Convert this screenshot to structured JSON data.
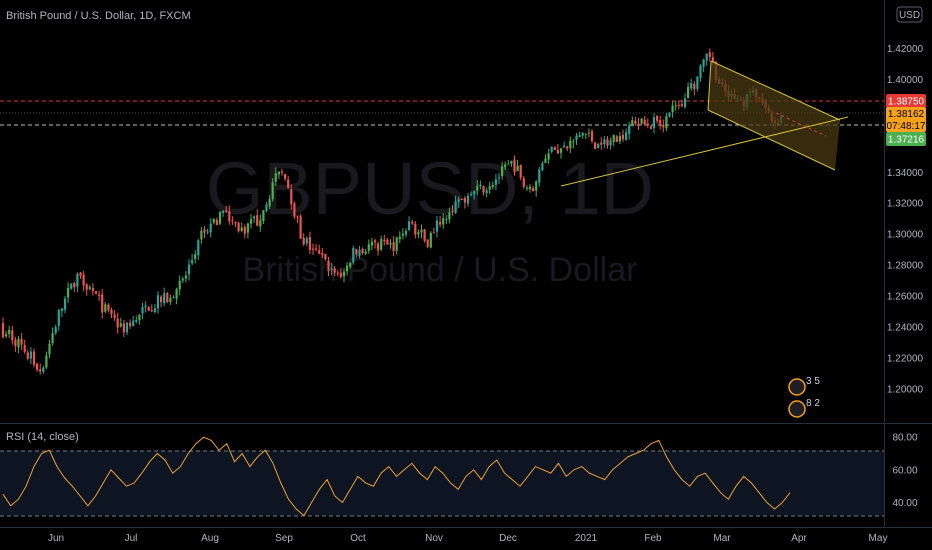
{
  "header": {
    "symbol_title": "British Pound / U.S. Dollar, 1D, FXCM",
    "currency_button": "USD",
    "rsi_title": "RSI (14, close)"
  },
  "watermark": {
    "ticker": "GBPUSD, 1D",
    "name": "British Pound / U.S. Dollar"
  },
  "colors": {
    "background": "#000000",
    "up": "#26a69a",
    "up_bright": "#4caf50",
    "down": "#ef5350",
    "channel_line": "#d4c13a",
    "channel_fill": "#4a3a12",
    "rsi_line": "#f0a030",
    "rsi_band": "#0d1522",
    "resistance": "#e53935",
    "support_dash": "#bfbfbf",
    "label_red": "#e53935",
    "label_orange": "#f7a21b",
    "label_green": "#4caf50"
  },
  "price_labels": {
    "resistance": "1.38750",
    "last_price": "1.38162",
    "countdown": "07:48:17",
    "support": "1.37216"
  },
  "event_badges": [
    {
      "label": "3 5"
    },
    {
      "label": "8 2"
    }
  ],
  "chart_data": [
    {
      "type": "candlestick",
      "title": "British Pound / U.S. Dollar, 1D, FXCM",
      "x_ticks": [
        "Jun",
        "Jul",
        "Aug",
        "Sep",
        "Oct",
        "Nov",
        "Dec",
        "2021",
        "Feb",
        "Mar",
        "Apr",
        "May"
      ],
      "y_ticks": [
        "1.20000",
        "1.22000",
        "1.24000",
        "1.26000",
        "1.28000",
        "1.30000",
        "1.32000",
        "1.34000",
        "1.36000",
        "1.38000",
        "1.40000",
        "1.42000"
      ],
      "ylim": [
        1.185,
        1.432
      ],
      "path": [
        [
          "2020-05-12",
          1.238
        ],
        [
          "2020-05-19",
          1.226
        ],
        [
          "2020-05-26",
          1.212
        ],
        [
          "2020-06-02",
          1.248
        ],
        [
          "2020-06-10",
          1.276
        ],
        [
          "2020-06-16",
          1.262
        ],
        [
          "2020-06-23",
          1.245
        ],
        [
          "2020-06-30",
          1.238
        ],
        [
          "2020-07-08",
          1.254
        ],
        [
          "2020-07-15",
          1.258
        ],
        [
          "2020-07-22",
          1.271
        ],
        [
          "2020-07-29",
          1.3
        ],
        [
          "2020-08-06",
          1.314
        ],
        [
          "2020-08-14",
          1.303
        ],
        [
          "2020-08-21",
          1.309
        ],
        [
          "2020-08-28",
          1.334
        ],
        [
          "2020-09-01",
          1.342
        ],
        [
          "2020-09-08",
          1.298
        ],
        [
          "2020-09-15",
          1.286
        ],
        [
          "2020-09-23",
          1.272
        ],
        [
          "2020-09-30",
          1.29
        ],
        [
          "2020-10-08",
          1.294
        ],
        [
          "2020-10-15",
          1.292
        ],
        [
          "2020-10-22",
          1.308
        ],
        [
          "2020-10-29",
          1.295
        ],
        [
          "2020-11-05",
          1.313
        ],
        [
          "2020-11-12",
          1.322
        ],
        [
          "2020-11-19",
          1.328
        ],
        [
          "2020-11-26",
          1.336
        ],
        [
          "2020-12-03",
          1.346
        ],
        [
          "2020-12-10",
          1.327
        ],
        [
          "2020-12-17",
          1.356
        ],
        [
          "2020-12-24",
          1.355
        ],
        [
          "2020-12-31",
          1.366
        ],
        [
          "2021-01-08",
          1.356
        ],
        [
          "2021-01-15",
          1.362
        ],
        [
          "2021-01-22",
          1.37
        ],
        [
          "2021-01-29",
          1.371
        ],
        [
          "2021-02-05",
          1.373
        ],
        [
          "2021-02-12",
          1.384
        ],
        [
          "2021-02-19",
          1.401
        ],
        [
          "2021-02-24",
          1.416
        ],
        [
          "2021-03-01",
          1.393
        ],
        [
          "2021-03-08",
          1.385
        ],
        [
          "2021-03-15",
          1.391
        ],
        [
          "2021-03-22",
          1.372
        ],
        [
          "2021-03-26",
          1.38
        ]
      ]
    },
    {
      "type": "line",
      "title": "RSI (14, close)",
      "y_ticks": [
        "40.00",
        "60.00",
        "80.00"
      ],
      "ylim": [
        25,
        85
      ],
      "reference_lines": [
        70,
        30
      ],
      "values": [
        45,
        38,
        42,
        50,
        62,
        70,
        72,
        62,
        55,
        50,
        44,
        38,
        44,
        52,
        60,
        55,
        50,
        52,
        58,
        65,
        70,
        66,
        58,
        62,
        70,
        76,
        80,
        78,
        72,
        76,
        65,
        70,
        62,
        68,
        72,
        64,
        52,
        42,
        36,
        32,
        40,
        48,
        54,
        44,
        40,
        48,
        56,
        52,
        50,
        58,
        62,
        56,
        60,
        64,
        58,
        54,
        62,
        58,
        52,
        48,
        56,
        60,
        54,
        62,
        66,
        58,
        54,
        50,
        56,
        62,
        60,
        58,
        64,
        56,
        60,
        62,
        58,
        56,
        54,
        60,
        64,
        68,
        70,
        72,
        76,
        78,
        68,
        60,
        54,
        50,
        56,
        58,
        52,
        46,
        42,
        50,
        56,
        52,
        46,
        40,
        36,
        40,
        46
      ]
    }
  ]
}
